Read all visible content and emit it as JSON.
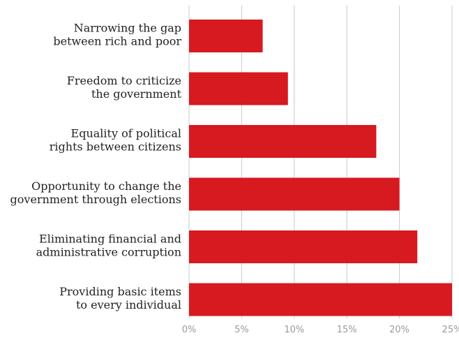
{
  "chart_data": {
    "type": "bar",
    "orientation": "horizontal",
    "categories": [
      [
        "Narrowing the gap",
        "between rich and poor"
      ],
      [
        "Freedom to criticize",
        "the government"
      ],
      [
        "Equality of political",
        "rights between citizens"
      ],
      [
        "Opportunity to change the",
        "government through elections"
      ],
      [
        "Eliminating financial and",
        "administrative corruption"
      ],
      [
        "Providing basic items",
        "to every individual"
      ]
    ],
    "values": [
      7.0,
      9.4,
      17.8,
      20.0,
      21.7,
      25.0
    ],
    "xlim": [
      0,
      25
    ],
    "ticks": [
      0,
      5,
      10,
      15,
      20,
      25
    ],
    "tick_labels": [
      "0%",
      "5%",
      "10%",
      "15%",
      "20%",
      "25%"
    ],
    "grid": "vertical",
    "bar_color": "#d71920",
    "title": "",
    "xlabel": "",
    "ylabel": ""
  }
}
